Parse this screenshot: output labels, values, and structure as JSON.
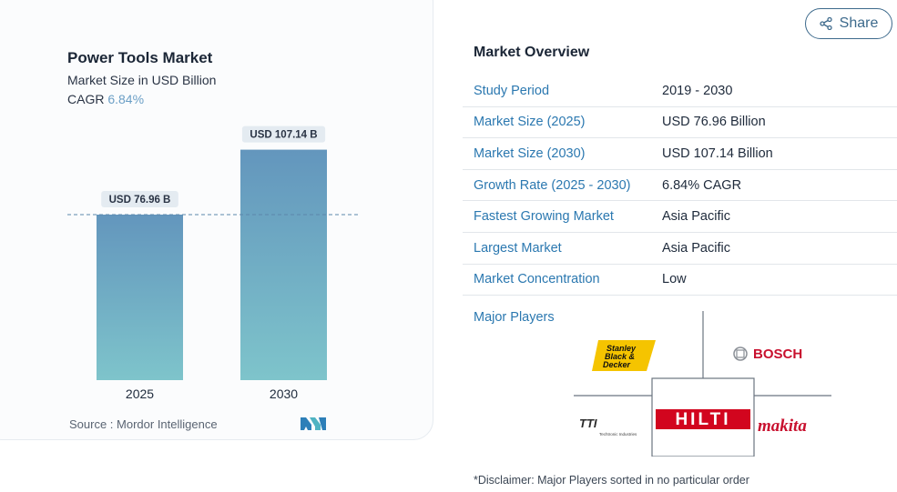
{
  "chart": {
    "title": "Power Tools Market",
    "subtitle": "Market Size in USD Billion",
    "cagr_label": "CAGR",
    "cagr_value": "6.84%",
    "source": "Source :  Mordor Intelligence"
  },
  "chart_data": {
    "type": "bar",
    "categories": [
      "2025",
      "2030"
    ],
    "values": [
      76.96,
      107.14
    ],
    "data_labels": [
      "USD 76.96 B",
      "USD 107.14 B"
    ],
    "title": "Power Tools Market",
    "subtitle": "Market Size in USD Billion",
    "xlabel": "",
    "ylabel": "",
    "ylim": [
      0,
      115
    ],
    "grid": false,
    "reference_line": "dashed at 2025 value",
    "colors": {
      "bar_top": "#6396bd",
      "bar_bottom": "#7ec4cb",
      "label_bg": "#e4ebf1"
    }
  },
  "share": {
    "label": "Share"
  },
  "overview": {
    "title": "Market Overview",
    "rows": [
      {
        "label": "Study Period",
        "value": "2019 - 2030"
      },
      {
        "label": "Market Size (2025)",
        "value": "USD 76.96 Billion"
      },
      {
        "label": "Market Size (2030)",
        "value": "USD 107.14 Billion"
      },
      {
        "label": "Growth Rate (2025 - 2030)",
        "value": "6.84% CAGR"
      },
      {
        "label": "Fastest Growing Market",
        "value": "Asia Pacific"
      },
      {
        "label": "Largest Market",
        "value": "Asia Pacific"
      },
      {
        "label": "Market Concentration",
        "value": "Low"
      }
    ]
  },
  "players": {
    "label": "Major Players",
    "logos": {
      "stanley": [
        "Stanley",
        "Black &",
        "Decker"
      ],
      "bosch": "BOSCH",
      "tti": [
        "TTI",
        "Techtronic Industries"
      ],
      "hilti": "HILTI",
      "makita": "makita"
    }
  },
  "disclaimer": "*Disclaimer: Major Players sorted in no particular order",
  "colors": {
    "accent": "#2b78b0",
    "share": "#3d6a8c",
    "hilti": "#d2051e",
    "makita": "#c8102e",
    "bosch": "#c8102e",
    "stanley_yellow": "#f5c400"
  }
}
